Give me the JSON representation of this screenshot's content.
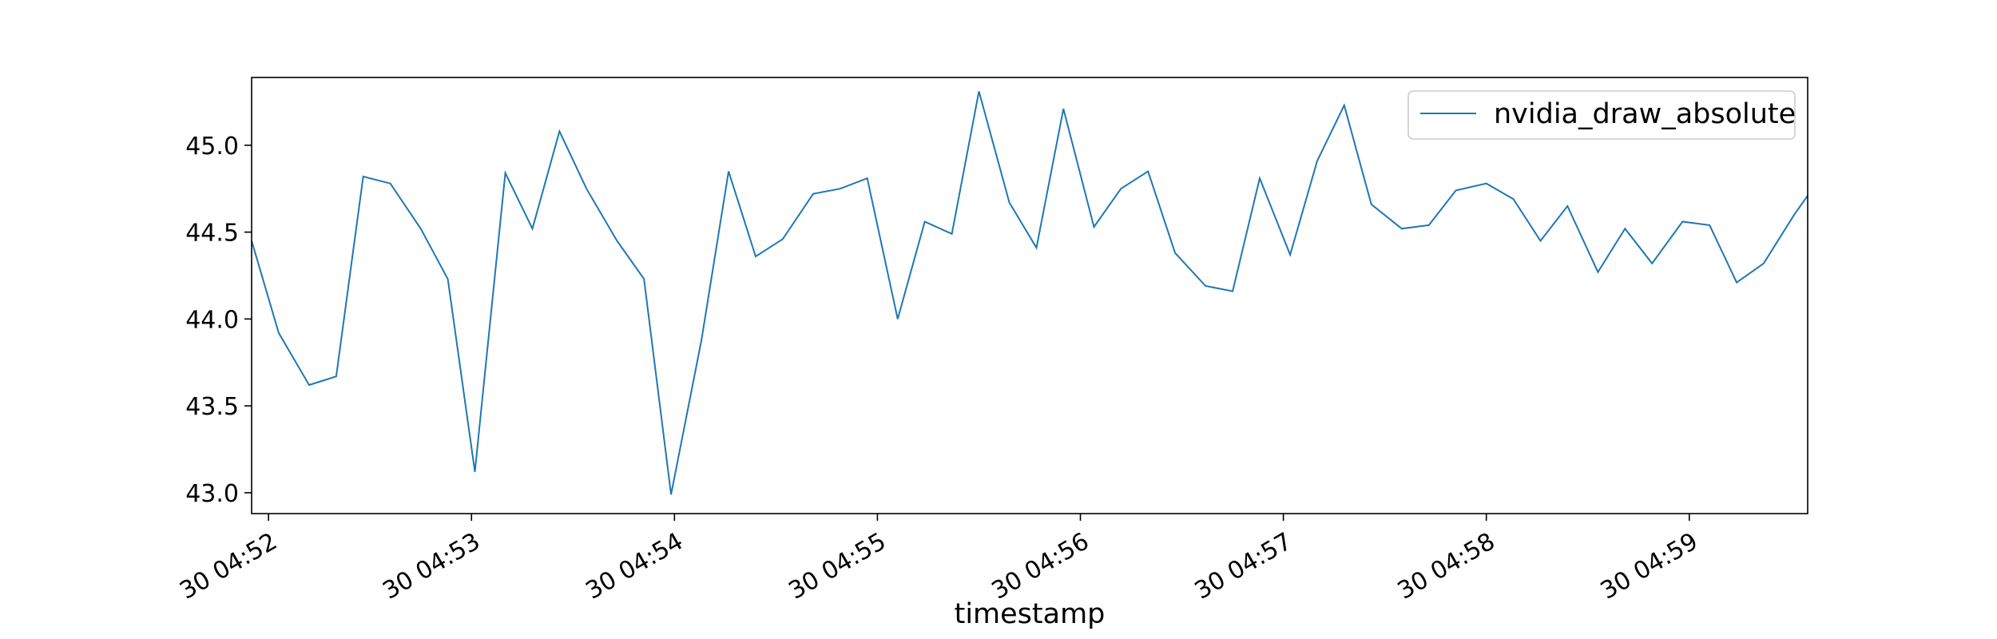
{
  "chart_data": {
    "type": "line",
    "xlabel": "timestamp",
    "ylabel": "",
    "x_start": "04:51:55",
    "x_end": "04:59:35",
    "x_ticks": [
      {
        "time": "04:52:00",
        "label": "30 04:52"
      },
      {
        "time": "04:53:00",
        "label": "30 04:53"
      },
      {
        "time": "04:54:00",
        "label": "30 04:54"
      },
      {
        "time": "04:55:00",
        "label": "30 04:55"
      },
      {
        "time": "04:56:00",
        "label": "30 04:56"
      },
      {
        "time": "04:57:00",
        "label": "30 04:57"
      },
      {
        "time": "04:58:00",
        "label": "30 04:58"
      },
      {
        "time": "04:59:00",
        "label": "30 04:59"
      }
    ],
    "y_ticks": [
      "43.0",
      "43.5",
      "44.0",
      "44.5",
      "45.0"
    ],
    "ylim": [
      42.88,
      45.39
    ],
    "grid": false,
    "legend_position": "top-right",
    "series": [
      {
        "name": "nvidia_draw_absolute",
        "color": "#1f77b4",
        "x": [
          "04:51:55",
          "04:52:03",
          "04:52:12",
          "04:52:20",
          "04:52:28",
          "04:52:36",
          "04:52:45",
          "04:52:53",
          "04:53:01",
          "04:53:10",
          "04:53:18",
          "04:53:26",
          "04:53:34",
          "04:53:43",
          "04:53:51",
          "04:53:59",
          "04:54:08",
          "04:54:16",
          "04:54:24",
          "04:54:32",
          "04:54:41",
          "04:54:49",
          "04:54:57",
          "04:55:06",
          "04:55:14",
          "04:55:22",
          "04:55:30",
          "04:55:39",
          "04:55:47",
          "04:55:55",
          "04:56:04",
          "04:56:12",
          "04:56:20",
          "04:56:28",
          "04:56:37",
          "04:56:45",
          "04:56:53",
          "04:57:02",
          "04:57:10",
          "04:57:18",
          "04:57:26",
          "04:57:35",
          "04:57:43",
          "04:57:51",
          "04:58:00",
          "04:58:08",
          "04:58:16",
          "04:58:24",
          "04:58:33",
          "04:58:41",
          "04:58:49",
          "04:58:58",
          "04:59:06",
          "04:59:14",
          "04:59:22",
          "04:59:31",
          "04:59:35"
        ],
        "y": [
          44.45,
          43.92,
          43.62,
          43.67,
          44.82,
          44.78,
          44.52,
          44.23,
          43.12,
          44.84,
          44.52,
          45.08,
          44.75,
          44.45,
          44.23,
          42.99,
          43.88,
          44.85,
          44.36,
          44.46,
          44.72,
          44.75,
          44.81,
          44.0,
          44.56,
          44.49,
          45.31,
          44.67,
          44.41,
          45.21,
          44.53,
          44.75,
          44.85,
          44.38,
          44.19,
          44.16,
          44.81,
          44.37,
          44.91,
          45.23,
          44.66,
          44.52,
          44.54,
          44.74,
          44.78,
          44.69,
          44.45,
          44.65,
          44.27,
          44.52,
          44.32,
          44.56,
          44.54,
          44.21,
          44.32,
          44.6,
          44.71
        ]
      }
    ]
  }
}
